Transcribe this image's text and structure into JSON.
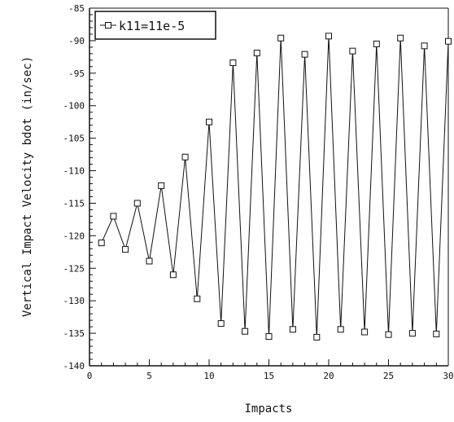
{
  "chart_data": {
    "type": "line",
    "title": "",
    "xlabel": "Impacts",
    "ylabel": "Vertical Impact Velocity bdot (in/sec)",
    "xlim": [
      0,
      30
    ],
    "ylim": [
      -140,
      -85
    ],
    "x_ticks": [
      0,
      5,
      10,
      15,
      20,
      25,
      30
    ],
    "y_ticks": [
      -85,
      -90,
      -95,
      -100,
      -105,
      -110,
      -115,
      -120,
      -125,
      -130,
      -135,
      -140
    ],
    "grid": false,
    "legend_position": "top-left",
    "series": [
      {
        "name": "k11=11e-5",
        "marker": "square",
        "x": [
          1,
          2,
          3,
          4,
          5,
          6,
          7,
          8,
          9,
          10,
          11,
          12,
          13,
          14,
          15,
          16,
          17,
          18,
          19,
          20,
          21,
          22,
          23,
          24,
          25,
          26,
          27,
          28,
          29,
          30
        ],
        "values": [
          -121.1,
          -117.0,
          -122.1,
          -115.0,
          -123.9,
          -112.3,
          -126.0,
          -107.9,
          -129.7,
          -102.5,
          -133.5,
          -93.4,
          -134.7,
          -91.9,
          -135.5,
          -89.6,
          -134.4,
          -92.1,
          -135.6,
          -89.3,
          -134.4,
          -91.6,
          -134.8,
          -90.5,
          -135.2,
          -89.6,
          -135.0,
          -90.8,
          -135.1,
          -90.1
        ]
      }
    ]
  }
}
